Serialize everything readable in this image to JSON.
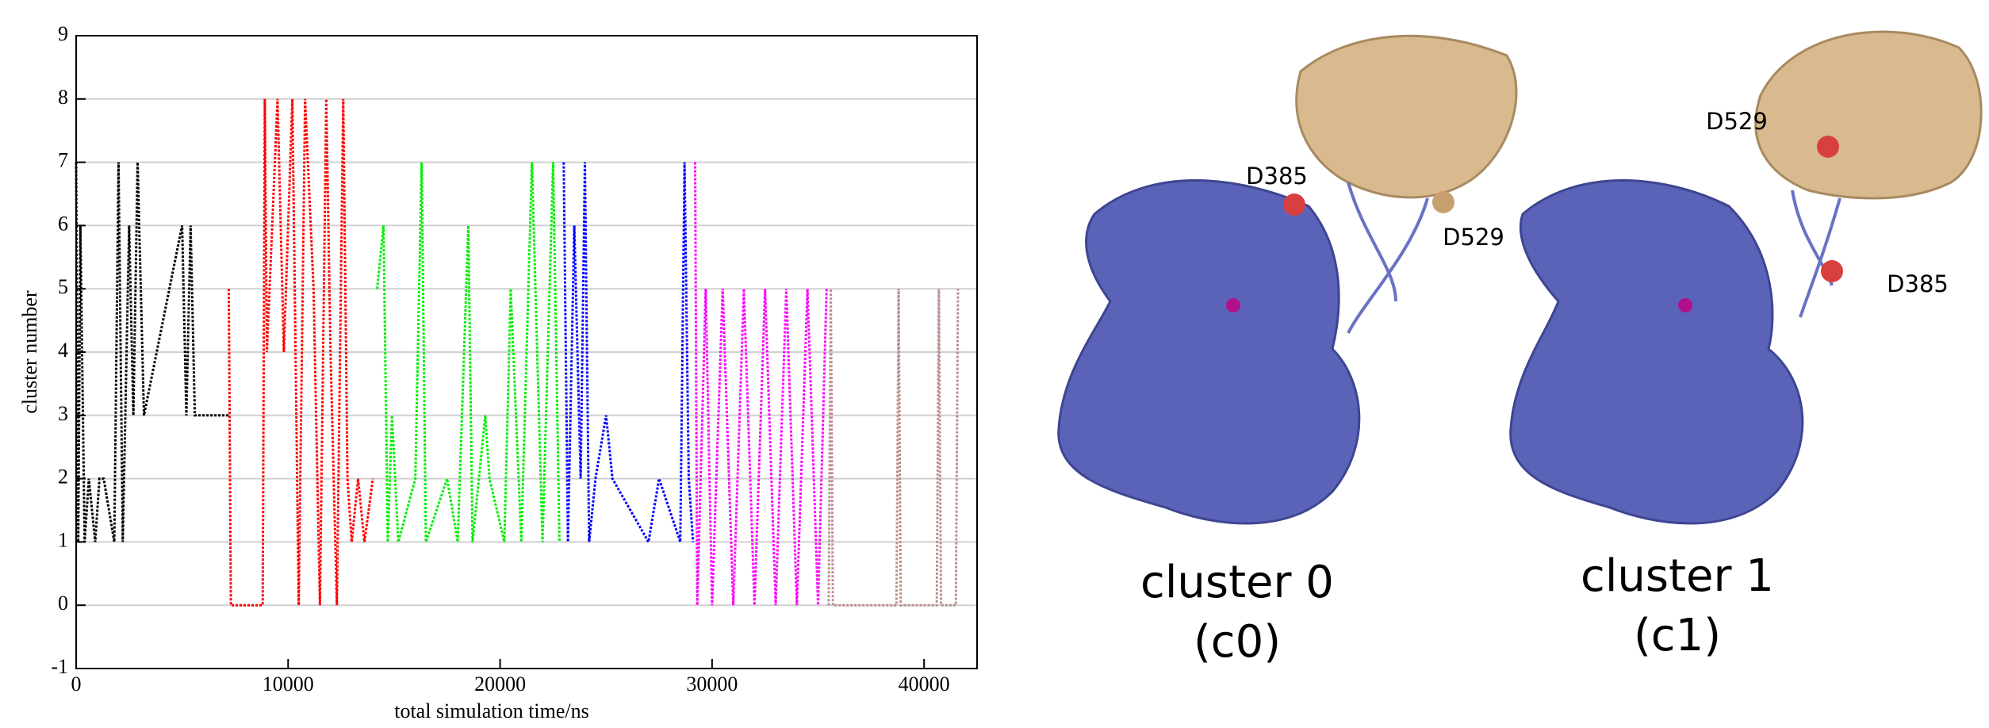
{
  "chart_data": {
    "type": "line",
    "x_label": "total simulation time/ns",
    "y_label": "cluster number",
    "xlim": [
      0,
      42500
    ],
    "ylim": [
      -1,
      9
    ],
    "xticks": [
      0,
      10000,
      20000,
      30000,
      40000
    ],
    "yticks": [
      -1,
      0,
      1,
      2,
      3,
      4,
      5,
      6,
      7,
      8,
      9
    ],
    "grid": true,
    "series": [
      {
        "color": "#000000",
        "x": [
          0,
          100,
          200,
          400,
          600,
          900,
          1100,
          1300,
          1800,
          2000,
          2200,
          2500,
          2700,
          2900,
          3200,
          5000,
          5200,
          5400,
          5600,
          7000,
          7200
        ],
        "values": [
          7,
          1,
          6,
          1,
          2,
          1,
          2,
          2,
          1,
          7,
          1,
          6,
          3,
          7,
          3,
          6,
          3,
          6,
          3,
          3,
          3
        ]
      },
      {
        "color": "#ff0000",
        "x": [
          7200,
          7300,
          8800,
          8900,
          9000,
          9500,
          9800,
          10200,
          10500,
          10800,
          11200,
          11500,
          11800,
          12000,
          12300,
          12600,
          12800,
          13000,
          13300,
          13600,
          14000
        ],
        "values": [
          5,
          0,
          0,
          8,
          4,
          8,
          4,
          8,
          0,
          8,
          5,
          0,
          8,
          4,
          0,
          8,
          2,
          1,
          2,
          1,
          2
        ]
      },
      {
        "color": "#00ee00",
        "x": [
          14200,
          14500,
          14700,
          14900,
          15200,
          16000,
          16300,
          16500,
          17500,
          18000,
          18500,
          18700,
          19300,
          19500,
          20200,
          20500,
          21000,
          21500,
          22000,
          22500,
          22800
        ],
        "values": [
          5,
          6,
          1,
          3,
          1,
          2,
          7,
          1,
          2,
          1,
          6,
          1,
          3,
          2,
          1,
          5,
          1,
          7,
          1,
          7,
          1
        ]
      },
      {
        "color": "#0000ff",
        "x": [
          23000,
          23200,
          23500,
          23800,
          24000,
          24200,
          24500,
          25000,
          25300,
          27000,
          27500,
          28500,
          28700,
          28900,
          29100
        ],
        "values": [
          7,
          1,
          6,
          2,
          7,
          1,
          2,
          3,
          2,
          1,
          2,
          1,
          7,
          2,
          1
        ]
      },
      {
        "color": "#ff00ff",
        "x": [
          29200,
          29300,
          29700,
          30000,
          30500,
          31000,
          31500,
          32000,
          32500,
          33000,
          33500,
          34000,
          34500,
          35000,
          35400
        ],
        "values": [
          7,
          0,
          5,
          0,
          5,
          0,
          5,
          0,
          5,
          0,
          5,
          0,
          5,
          0,
          5
        ]
      },
      {
        "color": "#bc8f8f",
        "x": [
          35500,
          35600,
          35700,
          38700,
          38800,
          38900,
          40600,
          40700,
          40800,
          41500,
          41600
        ],
        "values": [
          0,
          5,
          0,
          0,
          5,
          0,
          0,
          5,
          0,
          0,
          5
        ]
      }
    ]
  },
  "structures": [
    {
      "title": "cluster 0",
      "subtitle": "(c0)",
      "labels": [
        "D385",
        "D529"
      ]
    },
    {
      "title": "cluster 1",
      "subtitle": "(c1)",
      "labels": [
        "D529",
        "D385"
      ]
    }
  ]
}
